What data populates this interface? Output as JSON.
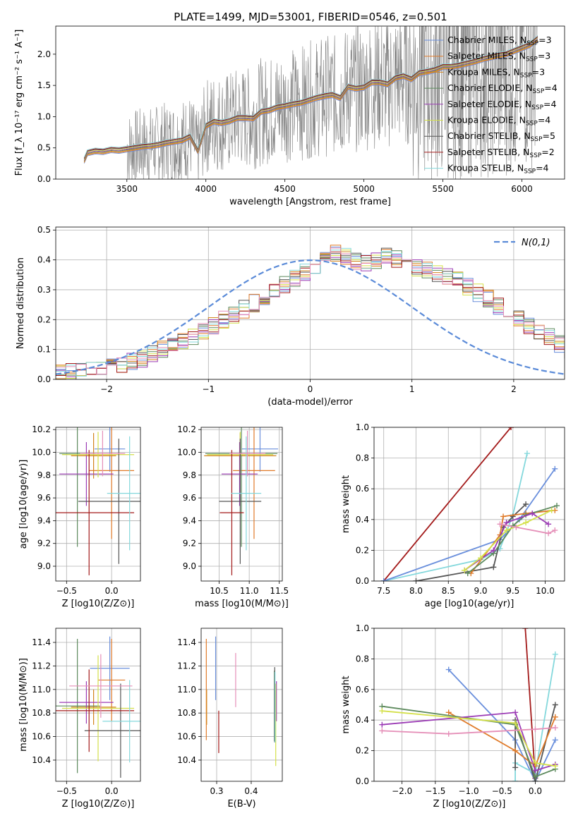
{
  "figure_title": "PLATE=1499, MJD=53001, FIBERID=0546, z=0.501",
  "colors": {
    "Chabrier MILES": "#6a8fdc",
    "Salpeter MILES": "#e07b2a",
    "Kroupa MILES": "#d2841c",
    "Chabrier ELODIE": "#5d8a5d",
    "Salpeter ELODIE": "#9b3bb5",
    "Kroupa ELODIE": "#d4e04a",
    "Chabrier STELIB": "#555555",
    "Salpeter STELIB": "#a31a1a",
    "Kroupa STELIB": "#84d8dc",
    "Kroupa MILES mass": "#e58fb8",
    "data": "#808080",
    "normal": "#5b8bd8"
  },
  "legend_spectrum": [
    {
      "name": "Chabrier MILES",
      "nssp": "3"
    },
    {
      "name": "Salpeter MILES",
      "nssp": "3"
    },
    {
      "name": "Kroupa MILES",
      "nssp": "3"
    },
    {
      "name": "Chabrier ELODIE",
      "nssp": "4"
    },
    {
      "name": "Salpeter ELODIE",
      "nssp": "4"
    },
    {
      "name": "Kroupa ELODIE",
      "nssp": "4"
    },
    {
      "name": "Chabrier STELIB",
      "nssp": "5"
    },
    {
      "name": "Salpeter STELIB",
      "nssp": "2"
    },
    {
      "name": "Kroupa STELIB",
      "nssp": "4"
    }
  ],
  "legend_nssp_prefix": "N",
  "legend_nssp_sub": "SSP",
  "chart_data": [
    {
      "id": "spectrum",
      "type": "line",
      "xlabel": "wavelength [Angstrom, rest frame]",
      "ylabel": "Flux [f_λ 10⁻¹⁷ erg cm⁻² s⁻¹ A⁻¹]",
      "xlim": [
        3050,
        6270
      ],
      "ylim": [
        0,
        2.45
      ],
      "xticks": [
        3500,
        4000,
        4500,
        5000,
        5500,
        6000
      ],
      "yticks": [
        0.0,
        0.5,
        1.0,
        1.5,
        2.0
      ],
      "model_x": [
        3230,
        3250,
        3300,
        3350,
        3400,
        3450,
        3500,
        3550,
        3600,
        3650,
        3700,
        3750,
        3800,
        3850,
        3900,
        3950,
        4000,
        4050,
        4100,
        4150,
        4200,
        4250,
        4300,
        4350,
        4400,
        4450,
        4500,
        4550,
        4600,
        4650,
        4700,
        4750,
        4800,
        4850,
        4900,
        4950,
        5000,
        5050,
        5100,
        5150,
        5200,
        5250,
        5300,
        5350,
        5400,
        5450,
        5500,
        5550,
        5600,
        5650,
        5700,
        5750,
        5800,
        5850,
        5900,
        5950,
        6000,
        6050,
        6100
      ],
      "model_y": [
        0.3,
        0.42,
        0.45,
        0.44,
        0.47,
        0.46,
        0.48,
        0.5,
        0.52,
        0.53,
        0.55,
        0.58,
        0.6,
        0.62,
        0.68,
        0.45,
        0.85,
        0.92,
        0.9,
        0.93,
        0.98,
        0.98,
        0.97,
        1.08,
        1.1,
        1.15,
        1.17,
        1.2,
        1.22,
        1.26,
        1.3,
        1.33,
        1.35,
        1.3,
        1.48,
        1.45,
        1.47,
        1.55,
        1.55,
        1.52,
        1.62,
        1.65,
        1.6,
        1.7,
        1.72,
        1.75,
        1.8,
        1.8,
        1.82,
        1.85,
        1.88,
        1.92,
        1.95,
        1.98,
        2.0,
        2.05,
        2.1,
        2.15,
        2.25
      ]
    },
    {
      "id": "residuals",
      "type": "histogram",
      "xlabel": "(data-model)/error",
      "ylabel": "Normed distribution",
      "legend": "N(0,1)",
      "xlim": [
        -2.5,
        2.5
      ],
      "ylim": [
        0,
        0.51
      ],
      "xticks": [
        -2,
        -1,
        0,
        1,
        2
      ],
      "yticks": [
        0.0,
        0.1,
        0.2,
        0.3,
        0.4,
        0.5
      ],
      "bin_width": 0.1,
      "bin_centers_start": -2.45,
      "envelope": [
        0.02,
        0.025,
        0.03,
        0.035,
        0.04,
        0.045,
        0.05,
        0.06,
        0.07,
        0.085,
        0.1,
        0.115,
        0.13,
        0.145,
        0.16,
        0.18,
        0.2,
        0.215,
        0.235,
        0.255,
        0.275,
        0.3,
        0.32,
        0.34,
        0.36,
        0.38,
        0.4,
        0.42,
        0.41,
        0.395,
        0.39,
        0.4,
        0.41,
        0.405,
        0.39,
        0.375,
        0.365,
        0.355,
        0.345,
        0.33,
        0.31,
        0.29,
        0.27,
        0.245,
        0.22,
        0.2,
        0.18,
        0.16,
        0.14,
        0.12,
        0.1
      ]
    },
    {
      "id": "age_vs_Z",
      "type": "errorbar",
      "xlabel": "Z [log10(Z/Z⊙)]",
      "ylabel": "age [log10(age/yr)]",
      "xlim": [
        -0.62,
        0.32
      ],
      "ylim": [
        8.87,
        10.22
      ],
      "xticks": [
        -0.5,
        0.0
      ],
      "yticks": [
        9.0,
        9.2,
        9.4,
        9.6,
        9.8,
        10.0,
        10.2
      ],
      "points": [
        {
          "s": "Chabrier MILES",
          "x": -0.02,
          "xerr": 0.17,
          "y": 10.03,
          "yerr": 0.2
        },
        {
          "s": "Salpeter MILES",
          "x": 0.0,
          "xerr": 0.25,
          "y": 9.84,
          "yerr": 0.6
        },
        {
          "s": "Kroupa MILES",
          "x": -0.2,
          "xerr": 0.25,
          "y": 9.97,
          "yerr": 0.2
        },
        {
          "s": "Chabrier ELODIE",
          "x": -0.38,
          "xerr": 0.2,
          "y": 9.99,
          "yerr": 0.82
        },
        {
          "s": "Salpeter ELODIE",
          "x": -0.28,
          "xerr": 0.3,
          "y": 9.81,
          "yerr": 0.28
        },
        {
          "s": "Kroupa ELODIE",
          "x": -0.15,
          "xerr": 0.4,
          "y": 9.98,
          "yerr": 0.2
        },
        {
          "s": "Chabrier STELIB",
          "x": 0.08,
          "xerr": 0.45,
          "y": 9.57,
          "yerr": 0.55
        },
        {
          "s": "Salpeter STELIB",
          "x": -0.25,
          "xerr": 0.5,
          "y": 9.47,
          "yerr": 0.55
        },
        {
          "s": "Kroupa STELIB",
          "x": 0.2,
          "xerr": 0.25,
          "y": 9.64,
          "yerr": 0.5
        },
        {
          "s": "Kroupa MILES mass",
          "x": -0.1,
          "xerr": 0.25,
          "y": 9.99,
          "yerr": 0.2
        }
      ]
    },
    {
      "id": "age_vs_mass",
      "type": "errorbar",
      "xlabel": "mass [log10(M/M⊙)]",
      "ylabel": "",
      "xlim": [
        10.2,
        11.55
      ],
      "ylim": [
        8.87,
        10.22
      ],
      "xticks": [
        10.5,
        11.0,
        11.5
      ],
      "yticks": [
        9.0,
        9.2,
        9.4,
        9.6,
        9.8,
        10.0,
        10.2
      ],
      "points": [
        {
          "s": "Chabrier MILES",
          "x": 11.18,
          "xerr": 0.3,
          "y": 10.03,
          "yerr": 0.2
        },
        {
          "s": "Salpeter MILES",
          "x": 11.08,
          "xerr": 0.35,
          "y": 9.84,
          "yerr": 0.6
        },
        {
          "s": "Kroupa MILES",
          "x": 10.85,
          "xerr": 0.6,
          "y": 9.97,
          "yerr": 0.2
        },
        {
          "s": "Chabrier ELODIE",
          "x": 10.87,
          "xerr": 0.6,
          "y": 9.99,
          "yerr": 0.82
        },
        {
          "s": "Salpeter ELODIE",
          "x": 10.84,
          "xerr": 0.3,
          "y": 9.81,
          "yerr": 0.28
        },
        {
          "s": "Kroupa ELODIE",
          "x": 10.85,
          "xerr": 0.55,
          "y": 9.98,
          "yerr": 0.2
        },
        {
          "s": "Chabrier STELIB",
          "x": 10.85,
          "xerr": 0.35,
          "y": 9.57,
          "yerr": 0.55
        },
        {
          "s": "Salpeter STELIB",
          "x": 10.71,
          "xerr": 0.2,
          "y": 9.47,
          "yerr": 0.55
        },
        {
          "s": "Kroupa STELIB",
          "x": 10.95,
          "xerr": 0.25,
          "y": 9.64,
          "yerr": 0.5
        },
        {
          "s": "Kroupa MILES mass",
          "x": 10.97,
          "xerr": 0.3,
          "y": 9.99,
          "yerr": 0.2
        }
      ]
    },
    {
      "id": "mass_weight_vs_age",
      "type": "line",
      "xlabel": "age [log10(age/yr)]",
      "ylabel": "mass weight",
      "xlim": [
        7.35,
        10.3
      ],
      "ylim": [
        0,
        1.0
      ],
      "xticks": [
        7.5,
        8.0,
        8.5,
        9.0,
        9.5,
        10.0
      ],
      "yticks": [
        0.0,
        0.2,
        0.4,
        0.6,
        0.8,
        1.0
      ],
      "series": [
        {
          "s": "Salpeter STELIB",
          "x": [
            7.5,
            9.47
          ],
          "y": [
            0.0,
            1.0
          ]
        },
        {
          "s": "Kroupa STELIB",
          "x": [
            7.5,
            9.0,
            9.3,
            9.5,
            9.72
          ],
          "y": [
            0.0,
            0.14,
            0.21,
            0.43,
            0.83
          ]
        },
        {
          "s": "Chabrier MILES",
          "x": [
            7.5,
            9.3,
            9.6,
            10.15
          ],
          "y": [
            0.0,
            0.27,
            0.4,
            0.73
          ]
        },
        {
          "s": "Chabrier STELIB",
          "x": [
            8.0,
            9.2,
            9.35,
            9.5,
            9.7
          ],
          "y": [
            0.0,
            0.09,
            0.35,
            0.42,
            0.5
          ]
        },
        {
          "s": "Salpeter MILES",
          "x": [
            8.85,
            9.3,
            9.35,
            9.7,
            10.15
          ],
          "y": [
            0.05,
            0.3,
            0.42,
            0.44,
            0.46
          ]
        },
        {
          "s": "Chabrier ELODIE",
          "x": [
            8.8,
            9.2,
            9.5,
            9.7,
            10.18
          ],
          "y": [
            0.05,
            0.18,
            0.36,
            0.43,
            0.49
          ]
        },
        {
          "s": "Salpeter ELODIE",
          "x": [
            8.75,
            9.2,
            9.4,
            9.8,
            10.05
          ],
          "y": [
            0.07,
            0.2,
            0.38,
            0.44,
            0.37
          ]
        },
        {
          "s": "Kroupa ELODIE",
          "x": [
            8.75,
            9.0,
            9.4,
            9.7,
            10.1
          ],
          "y": [
            0.07,
            0.15,
            0.33,
            0.38,
            0.46
          ]
        },
        {
          "s": "Kroupa MILES mass",
          "x": [
            9.3,
            9.55,
            10.05,
            10.15
          ],
          "y": [
            0.37,
            0.35,
            0.31,
            0.33
          ]
        }
      ]
    },
    {
      "id": "mass_vs_Z",
      "type": "errorbar",
      "xlabel": "Z [log10(Z/Z⊙)]",
      "ylabel": "mass [log10(M/M⊙)]",
      "xlim": [
        -0.62,
        0.32
      ],
      "ylim": [
        10.22,
        11.52
      ],
      "xticks": [
        -0.5,
        0.0
      ],
      "yticks": [
        10.4,
        10.6,
        10.8,
        11.0,
        11.2,
        11.4
      ],
      "points": [
        {
          "s": "Chabrier MILES",
          "x": -0.02,
          "xerr": 0.22,
          "y": 11.18,
          "yerr": 0.27
        },
        {
          "s": "Salpeter MILES",
          "x": 0.0,
          "xerr": 0.15,
          "y": 11.08,
          "yerr": 0.35
        },
        {
          "s": "Kroupa MILES",
          "x": -0.2,
          "xerr": 0.25,
          "y": 10.85,
          "yerr": 0.15
        },
        {
          "s": "Chabrier ELODIE",
          "x": -0.38,
          "xerr": 0.25,
          "y": 10.86,
          "yerr": 0.57
        },
        {
          "s": "Salpeter ELODIE",
          "x": -0.28,
          "xerr": 0.3,
          "y": 10.89,
          "yerr": 0.18
        },
        {
          "s": "Kroupa ELODIE",
          "x": -0.15,
          "xerr": 0.4,
          "y": 10.84,
          "yerr": 0.45
        },
        {
          "s": "Chabrier STELIB",
          "x": 0.1,
          "xerr": 0.4,
          "y": 10.65,
          "yerr": 0.4
        },
        {
          "s": "Salpeter STELIB",
          "x": -0.25,
          "xerr": 0.5,
          "y": 10.82,
          "yerr": 0.35
        },
        {
          "s": "Kroupa STELIB",
          "x": 0.2,
          "xerr": 0.3,
          "y": 10.73,
          "yerr": 0.35
        },
        {
          "s": "Kroupa MILES mass",
          "x": -0.12,
          "xerr": 0.35,
          "y": 11.03,
          "yerr": 0.27
        }
      ]
    },
    {
      "id": "mass_vs_EBV",
      "type": "errorbar",
      "xlabel": "E(B-V)",
      "ylabel": "",
      "xlim": [
        0.255,
        0.49
      ],
      "ylim": [
        10.22,
        11.52
      ],
      "xticks": [
        0.3,
        0.4
      ],
      "yticks": [
        10.4,
        10.6,
        10.8,
        11.0,
        11.2,
        11.4
      ],
      "points": [
        {
          "s": "Chabrier MILES",
          "x": 0.297,
          "xerr": 0,
          "y": 11.18,
          "yerr": 0.27
        },
        {
          "s": "Salpeter MILES",
          "x": 0.27,
          "xerr": 0,
          "y": 11.0,
          "yerr": 0.43
        },
        {
          "s": "Kroupa MILES",
          "x": 0.271,
          "xerr": 0,
          "y": 10.85,
          "yerr": 0.15
        },
        {
          "s": "Chabrier ELODIE",
          "x": 0.467,
          "xerr": 0,
          "y": 10.86,
          "yerr": 0.3
        },
        {
          "s": "Salpeter ELODIE",
          "x": 0.473,
          "xerr": 0,
          "y": 10.9,
          "yerr": 0.17
        },
        {
          "s": "Kroupa ELODIE",
          "x": 0.471,
          "xerr": 0,
          "y": 10.7,
          "yerr": 0.35
        },
        {
          "s": "Chabrier STELIB",
          "x": 0.468,
          "xerr": 0,
          "y": 10.87,
          "yerr": 0.32
        },
        {
          "s": "Salpeter STELIB",
          "x": 0.306,
          "xerr": 0,
          "y": 10.64,
          "yerr": 0.18
        },
        {
          "s": "Kroupa STELIB",
          "x": 0.469,
          "xerr": 0,
          "y": 10.85,
          "yerr": 0.3
        },
        {
          "s": "Kroupa MILES mass",
          "x": 0.355,
          "xerr": 0,
          "y": 11.08,
          "yerr": 0.23
        }
      ]
    },
    {
      "id": "mass_weight_vs_Z",
      "type": "line",
      "xlabel": "Z [log10(Z/Z⊙)]",
      "ylabel": "mass weight",
      "xlim": [
        -2.42,
        0.44
      ],
      "ylim": [
        0,
        1.0
      ],
      "xticks": [
        -2.0,
        -1.5,
        -1.0,
        -0.5,
        0.0
      ],
      "yticks": [
        0.0,
        0.2,
        0.4,
        0.6,
        0.8,
        1.0
      ],
      "series": [
        {
          "s": "Salpeter STELIB",
          "x": [
            -0.15,
            0.0
          ],
          "y": [
            1.0,
            0.02
          ]
        },
        {
          "s": "Chabrier MILES",
          "x": [
            -1.3,
            -0.3,
            0.0,
            0.3
          ],
          "y": [
            0.73,
            0.27,
            0.0,
            0.27
          ]
        },
        {
          "s": "Kroupa STELIB",
          "x": [
            -0.3,
            -0.3,
            0.0,
            0.3
          ],
          "y": [
            0.0,
            0.12,
            0.05,
            0.83
          ]
        },
        {
          "s": "Chabrier STELIB",
          "x": [
            -0.3,
            -0.3,
            0.0,
            0.3
          ],
          "y": [
            0.09,
            0.4,
            0.0,
            0.5
          ]
        },
        {
          "s": "Salpeter MILES",
          "x": [
            -1.3,
            -0.3,
            0.0,
            0.3
          ],
          "y": [
            0.45,
            0.2,
            0.1,
            0.42
          ]
        },
        {
          "s": "Chabrier ELODIE",
          "x": [
            -2.3,
            -0.3,
            0.0,
            0.3
          ],
          "y": [
            0.49,
            0.37,
            0.03,
            0.08
          ]
        },
        {
          "s": "Salpeter ELODIE",
          "x": [
            -2.3,
            -0.3,
            0.0,
            0.3
          ],
          "y": [
            0.37,
            0.45,
            0.07,
            0.11
          ]
        },
        {
          "s": "Kroupa ELODIE",
          "x": [
            -2.3,
            -0.3,
            0.0,
            0.3
          ],
          "y": [
            0.46,
            0.38,
            0.12,
            0.1
          ]
        },
        {
          "s": "Kroupa MILES mass",
          "x": [
            -2.3,
            -1.3,
            0.0,
            0.3
          ],
          "y": [
            0.33,
            0.31,
            0.34,
            0.35
          ]
        }
      ]
    }
  ]
}
